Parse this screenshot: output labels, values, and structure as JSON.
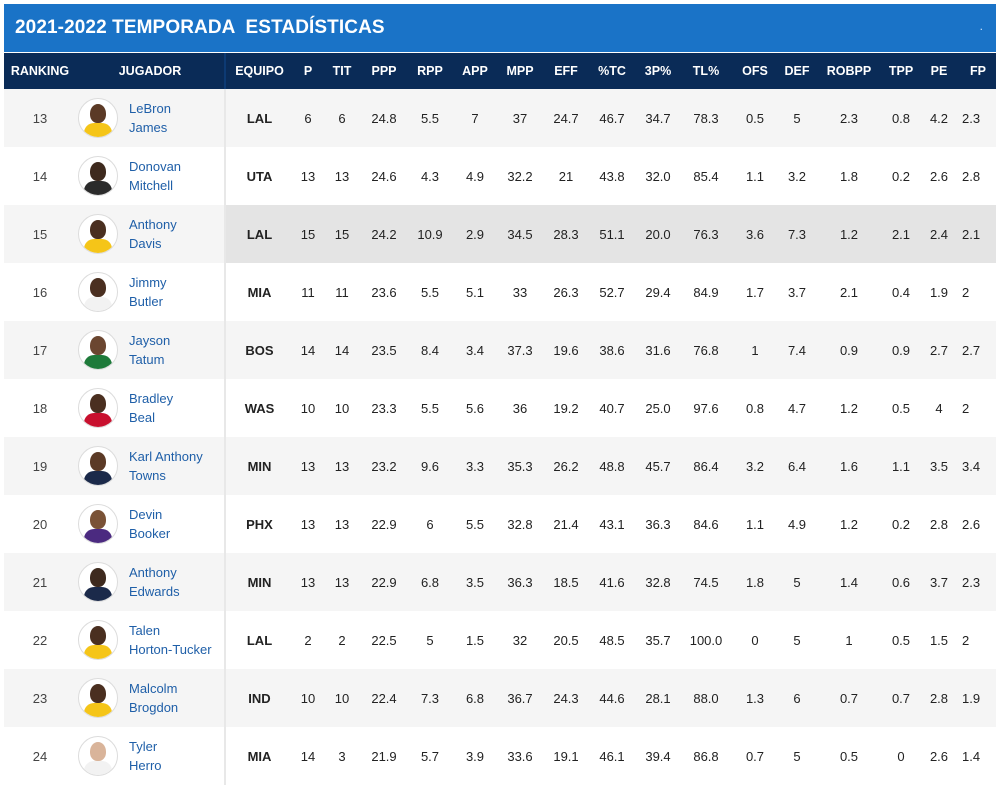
{
  "header": {
    "title": "2021-2022 TEMPORADA  ESTADÍSTICAS",
    "corner_mark": "."
  },
  "columns": [
    "RANKING",
    "JUGADOR",
    "EQUIPO",
    "P",
    "TIT",
    "PPP",
    "RPP",
    "APP",
    "MPP",
    "EFF",
    "%TC",
    "3P%",
    "TL%",
    "OFS",
    "DEF",
    "ROBPP",
    "TPP",
    "PE",
    "FP"
  ],
  "rows": [
    {
      "rank": "13",
      "first": "LeBron",
      "last": "James",
      "team": "LAL",
      "p": "6",
      "tit": "6",
      "ppp": "24.8",
      "rpp": "5.5",
      "app": "7",
      "mpp": "37",
      "eff": "24.7",
      "tc": "46.7",
      "p3": "34.7",
      "tl": "78.3",
      "ofs": "0.5",
      "def": "5",
      "rob": "2.3",
      "tpp": "0.8",
      "pe": "4.2",
      "fp": "2.3",
      "skin": "#5b3a26",
      "jersey": "#f5c518"
    },
    {
      "rank": "14",
      "first": "Donovan",
      "last": "Mitchell",
      "team": "UTA",
      "p": "13",
      "tit": "13",
      "ppp": "24.6",
      "rpp": "4.3",
      "app": "4.9",
      "mpp": "32.2",
      "eff": "21",
      "tc": "43.8",
      "p3": "32.0",
      "tl": "85.4",
      "ofs": "1.1",
      "def": "3.2",
      "rob": "1.8",
      "tpp": "0.2",
      "pe": "2.6",
      "fp": "2.8",
      "skin": "#3e2a1e",
      "jersey": "#2b2b2b"
    },
    {
      "rank": "15",
      "first": "Anthony",
      "last": "Davis",
      "team": "LAL",
      "p": "15",
      "tit": "15",
      "ppp": "24.2",
      "rpp": "10.9",
      "app": "2.9",
      "mpp": "34.5",
      "eff": "28.3",
      "tc": "51.1",
      "p3": "20.0",
      "tl": "76.3",
      "ofs": "3.6",
      "def": "7.3",
      "rob": "1.2",
      "tpp": "2.1",
      "pe": "2.4",
      "fp": "2.1",
      "skin": "#4a2f20",
      "jersey": "#f5c518",
      "highlight": true
    },
    {
      "rank": "16",
      "first": "Jimmy",
      "last": "Butler",
      "team": "MIA",
      "p": "11",
      "tit": "11",
      "ppp": "23.6",
      "rpp": "5.5",
      "app": "5.1",
      "mpp": "33",
      "eff": "26.3",
      "tc": "52.7",
      "p3": "29.4",
      "tl": "84.9",
      "ofs": "1.7",
      "def": "3.7",
      "rob": "2.1",
      "tpp": "0.4",
      "pe": "1.9",
      "fp": "2",
      "skin": "#4a2f20",
      "jersey": "#f2f2f2"
    },
    {
      "rank": "17",
      "first": "Jayson",
      "last": "Tatum",
      "team": "BOS",
      "p": "14",
      "tit": "14",
      "ppp": "23.5",
      "rpp": "8.4",
      "app": "3.4",
      "mpp": "37.3",
      "eff": "19.6",
      "tc": "38.6",
      "p3": "31.6",
      "tl": "76.8",
      "ofs": "1",
      "def": "7.4",
      "rob": "0.9",
      "tpp": "0.9",
      "pe": "2.7",
      "fp": "2.7",
      "skin": "#6b4630",
      "jersey": "#1e7a3a"
    },
    {
      "rank": "18",
      "first": "Bradley",
      "last": "Beal",
      "team": "WAS",
      "p": "10",
      "tit": "10",
      "ppp": "23.3",
      "rpp": "5.5",
      "app": "5.6",
      "mpp": "36",
      "eff": "19.2",
      "tc": "40.7",
      "p3": "25.0",
      "tl": "97.6",
      "ofs": "0.8",
      "def": "4.7",
      "rob": "1.2",
      "tpp": "0.5",
      "pe": "4",
      "fp": "2",
      "skin": "#4a2f20",
      "jersey": "#c8102e"
    },
    {
      "rank": "19",
      "first": "Karl Anthony",
      "last": "Towns",
      "team": "MIN",
      "p": "13",
      "tit": "13",
      "ppp": "23.2",
      "rpp": "9.6",
      "app": "3.3",
      "mpp": "35.3",
      "eff": "26.2",
      "tc": "48.8",
      "p3": "45.7",
      "tl": "86.4",
      "ofs": "3.2",
      "def": "6.4",
      "rob": "1.6",
      "tpp": "1.1",
      "pe": "3.5",
      "fp": "3.4",
      "skin": "#5b3a26",
      "jersey": "#1b2a4a"
    },
    {
      "rank": "20",
      "first": "Devin",
      "last": "Booker",
      "team": "PHX",
      "p": "13",
      "tit": "13",
      "ppp": "22.9",
      "rpp": "6",
      "app": "5.5",
      "mpp": "32.8",
      "eff": "21.4",
      "tc": "43.1",
      "p3": "36.3",
      "tl": "84.6",
      "ofs": "1.1",
      "def": "4.9",
      "rob": "1.2",
      "tpp": "0.2",
      "pe": "2.8",
      "fp": "2.6",
      "skin": "#7a5236",
      "jersey": "#4b2a80"
    },
    {
      "rank": "21",
      "first": "Anthony",
      "last": "Edwards",
      "team": "MIN",
      "p": "13",
      "tit": "13",
      "ppp": "22.9",
      "rpp": "6.8",
      "app": "3.5",
      "mpp": "36.3",
      "eff": "18.5",
      "tc": "41.6",
      "p3": "32.8",
      "tl": "74.5",
      "ofs": "1.8",
      "def": "5",
      "rob": "1.4",
      "tpp": "0.6",
      "pe": "3.7",
      "fp": "2.3",
      "skin": "#3e2a1e",
      "jersey": "#1b2a4a"
    },
    {
      "rank": "22",
      "first": "Talen",
      "last": "Horton-Tucker",
      "team": "LAL",
      "p": "2",
      "tit": "2",
      "ppp": "22.5",
      "rpp": "5",
      "app": "1.5",
      "mpp": "32",
      "eff": "20.5",
      "tc": "48.5",
      "p3": "35.7",
      "tl": "100.0",
      "ofs": "0",
      "def": "5",
      "rob": "1",
      "tpp": "0.5",
      "pe": "1.5",
      "fp": "2",
      "skin": "#4a2f20",
      "jersey": "#f5c518"
    },
    {
      "rank": "23",
      "first": "Malcolm",
      "last": "Brogdon",
      "team": "IND",
      "p": "10",
      "tit": "10",
      "ppp": "22.4",
      "rpp": "7.3",
      "app": "6.8",
      "mpp": "36.7",
      "eff": "24.3",
      "tc": "44.6",
      "p3": "28.1",
      "tl": "88.0",
      "ofs": "1.3",
      "def": "6",
      "rob": "0.7",
      "tpp": "0.7",
      "pe": "2.8",
      "fp": "1.9",
      "skin": "#4a2f20",
      "jersey": "#f5c518"
    },
    {
      "rank": "24",
      "first": "Tyler",
      "last": "Herro",
      "team": "MIA",
      "p": "14",
      "tit": "3",
      "ppp": "21.9",
      "rpp": "5.7",
      "app": "3.9",
      "mpp": "33.6",
      "eff": "19.1",
      "tc": "46.1",
      "p3": "39.4",
      "tl": "86.8",
      "ofs": "0.7",
      "def": "5",
      "rob": "0.5",
      "tpp": "0",
      "pe": "2.6",
      "fp": "1.4",
      "skin": "#d9b49a",
      "jersey": "#f2f2f2"
    }
  ]
}
